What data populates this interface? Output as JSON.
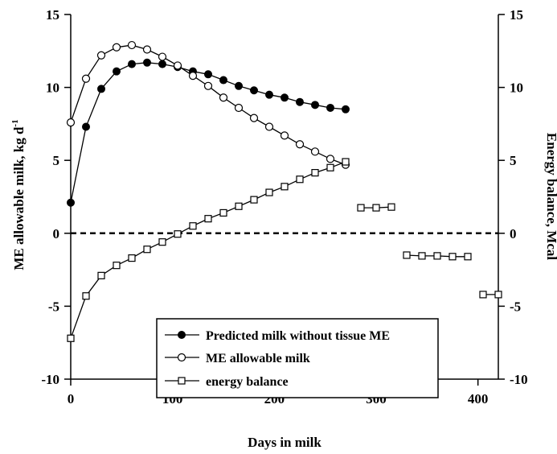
{
  "chart_data": {
    "type": "line",
    "xlabel": "Days in milk",
    "ylabel_left_main": "ME allowable milk, kg d",
    "ylabel_left_sup": "-1",
    "ylabel_right": "Energy balance, Mcal",
    "xlim": [
      0,
      420
    ],
    "ylim": [
      -10,
      15
    ],
    "x_ticks": [
      0,
      100,
      200,
      300,
      400
    ],
    "y_ticks": [
      -10,
      -5,
      0,
      5,
      10,
      15
    ],
    "y_tick_labels": [
      "-10",
      "-5",
      "0",
      "5",
      "10",
      "15"
    ],
    "grid": false,
    "zero_line": {
      "y": 0,
      "style": "dashed"
    },
    "legend": {
      "position": "bottom-center"
    },
    "series": [
      {
        "name": "Predicted milk without tissue ME",
        "marker": "filled-circle",
        "connected": true,
        "points": [
          [
            0,
            2.1
          ],
          [
            15,
            7.3
          ],
          [
            30,
            9.9
          ],
          [
            45,
            11.1
          ],
          [
            60,
            11.6
          ],
          [
            75,
            11.7
          ],
          [
            90,
            11.6
          ],
          [
            105,
            11.4
          ],
          [
            120,
            11.1
          ],
          [
            135,
            10.9
          ],
          [
            150,
            10.5
          ],
          [
            165,
            10.1
          ],
          [
            180,
            9.8
          ],
          [
            195,
            9.5
          ],
          [
            210,
            9.3
          ],
          [
            225,
            9.0
          ],
          [
            240,
            8.8
          ],
          [
            255,
            8.6
          ],
          [
            270,
            8.5
          ]
        ]
      },
      {
        "name": "ME allowable milk",
        "marker": "open-circle",
        "connected": true,
        "points": [
          [
            0,
            7.6
          ],
          [
            15,
            10.6
          ],
          [
            30,
            12.2
          ],
          [
            45,
            12.75
          ],
          [
            60,
            12.9
          ],
          [
            75,
            12.6
          ],
          [
            90,
            12.1
          ],
          [
            105,
            11.5
          ],
          [
            120,
            10.8
          ],
          [
            135,
            10.1
          ],
          [
            150,
            9.3
          ],
          [
            165,
            8.6
          ],
          [
            180,
            7.9
          ],
          [
            195,
            7.3
          ],
          [
            210,
            6.7
          ],
          [
            225,
            6.1
          ],
          [
            240,
            5.6
          ],
          [
            255,
            5.1
          ],
          [
            270,
            4.7
          ]
        ]
      },
      {
        "name": "energy balance",
        "marker": "open-square",
        "connected": true,
        "segments": [
          [
            [
              0,
              -7.2
            ],
            [
              15,
              -4.3
            ],
            [
              30,
              -2.9
            ],
            [
              45,
              -2.2
            ],
            [
              60,
              -1.7
            ],
            [
              75,
              -1.1
            ],
            [
              90,
              -0.6
            ],
            [
              105,
              -0.05
            ],
            [
              120,
              0.5
            ],
            [
              135,
              1.0
            ],
            [
              150,
              1.4
            ],
            [
              165,
              1.85
            ],
            [
              180,
              2.3
            ],
            [
              195,
              2.8
            ],
            [
              210,
              3.2
            ],
            [
              225,
              3.7
            ],
            [
              240,
              4.15
            ],
            [
              255,
              4.5
            ],
            [
              270,
              4.9
            ]
          ],
          [
            [
              285,
              1.75
            ],
            [
              300,
              1.75
            ],
            [
              315,
              1.8
            ]
          ],
          [
            [
              330,
              -1.5
            ],
            [
              345,
              -1.55
            ],
            [
              360,
              -1.55
            ],
            [
              375,
              -1.6
            ],
            [
              390,
              -1.6
            ]
          ],
          [
            [
              405,
              -4.2
            ],
            [
              420,
              -4.2
            ]
          ]
        ]
      }
    ]
  }
}
